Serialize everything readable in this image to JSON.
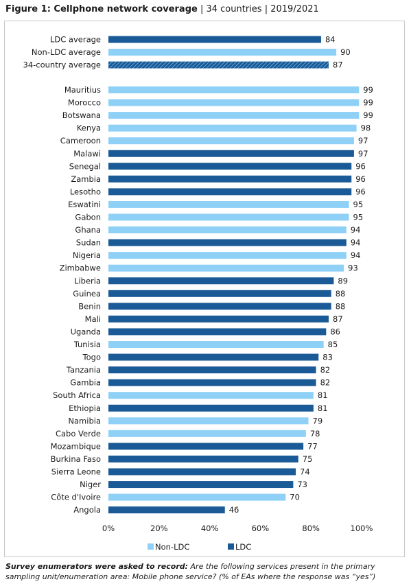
{
  "title": {
    "bold": "Figure 1: Cellphone network coverage",
    "sep1": " | ",
    "countries": "34 countries",
    "sep2": " | ",
    "years": "2019/2021"
  },
  "colors": {
    "non_ldc": "#8fd0f7",
    "ldc": "#1a5a96",
    "average_hatch": "#1a5a96"
  },
  "chart_data": {
    "type": "bar",
    "orientation": "horizontal",
    "xlim": [
      0,
      100
    ],
    "x_ticks": [
      "0%",
      "20%",
      "40%",
      "60%",
      "80%",
      "100%"
    ],
    "legend": {
      "placement": "bottom-left",
      "entries": [
        "Non-LDC",
        "LDC"
      ]
    },
    "averages": [
      {
        "label": "LDC average",
        "value": 84,
        "group": "LDC"
      },
      {
        "label": "Non-LDC average",
        "value": 90,
        "group": "Non-LDC"
      },
      {
        "label": "34-country average",
        "value": 87,
        "group": "All"
      }
    ],
    "countries": [
      {
        "label": "Mauritius",
        "value": 99,
        "group": "Non-LDC"
      },
      {
        "label": "Morocco",
        "value": 99,
        "group": "Non-LDC"
      },
      {
        "label": "Botswana",
        "value": 99,
        "group": "Non-LDC"
      },
      {
        "label": "Kenya",
        "value": 98,
        "group": "Non-LDC"
      },
      {
        "label": "Cameroon",
        "value": 97,
        "group": "Non-LDC"
      },
      {
        "label": "Malawi",
        "value": 97,
        "group": "LDC"
      },
      {
        "label": "Senegal",
        "value": 96,
        "group": "LDC"
      },
      {
        "label": "Zambia",
        "value": 96,
        "group": "LDC"
      },
      {
        "label": "Lesotho",
        "value": 96,
        "group": "LDC"
      },
      {
        "label": "Eswatini",
        "value": 95,
        "group": "Non-LDC"
      },
      {
        "label": "Gabon",
        "value": 95,
        "group": "Non-LDC"
      },
      {
        "label": "Ghana",
        "value": 94,
        "group": "Non-LDC"
      },
      {
        "label": "Sudan",
        "value": 94,
        "group": "LDC"
      },
      {
        "label": "Nigeria",
        "value": 94,
        "group": "Non-LDC"
      },
      {
        "label": "Zimbabwe",
        "value": 93,
        "group": "Non-LDC"
      },
      {
        "label": "Liberia",
        "value": 89,
        "group": "LDC"
      },
      {
        "label": "Guinea",
        "value": 88,
        "group": "LDC"
      },
      {
        "label": "Benin",
        "value": 88,
        "group": "LDC"
      },
      {
        "label": "Mali",
        "value": 87,
        "group": "LDC"
      },
      {
        "label": "Uganda",
        "value": 86,
        "group": "LDC"
      },
      {
        "label": "Tunisia",
        "value": 85,
        "group": "Non-LDC"
      },
      {
        "label": "Togo",
        "value": 83,
        "group": "LDC"
      },
      {
        "label": "Tanzania",
        "value": 82,
        "group": "LDC"
      },
      {
        "label": "Gambia",
        "value": 82,
        "group": "LDC"
      },
      {
        "label": "South Africa",
        "value": 81,
        "group": "Non-LDC"
      },
      {
        "label": "Ethiopia",
        "value": 81,
        "group": "LDC"
      },
      {
        "label": "Namibia",
        "value": 79,
        "group": "Non-LDC"
      },
      {
        "label": "Cabo Verde",
        "value": 78,
        "group": "Non-LDC"
      },
      {
        "label": "Mozambique",
        "value": 77,
        "group": "LDC"
      },
      {
        "label": "Burkina Faso",
        "value": 75,
        "group": "LDC"
      },
      {
        "label": "Sierra Leone",
        "value": 74,
        "group": "LDC"
      },
      {
        "label": "Niger",
        "value": 73,
        "group": "LDC"
      },
      {
        "label": "Côte d'Ivoire",
        "value": 70,
        "group": "Non-LDC"
      },
      {
        "label": "Angola",
        "value": 46,
        "group": "LDC"
      }
    ]
  },
  "footnote": {
    "lead": "Survey enumerators were asked to record:",
    "text": " Are the following services present in the primary sampling unit/enumeration area: Mobile phone service? (% of EAs where the response was “yes”)"
  }
}
